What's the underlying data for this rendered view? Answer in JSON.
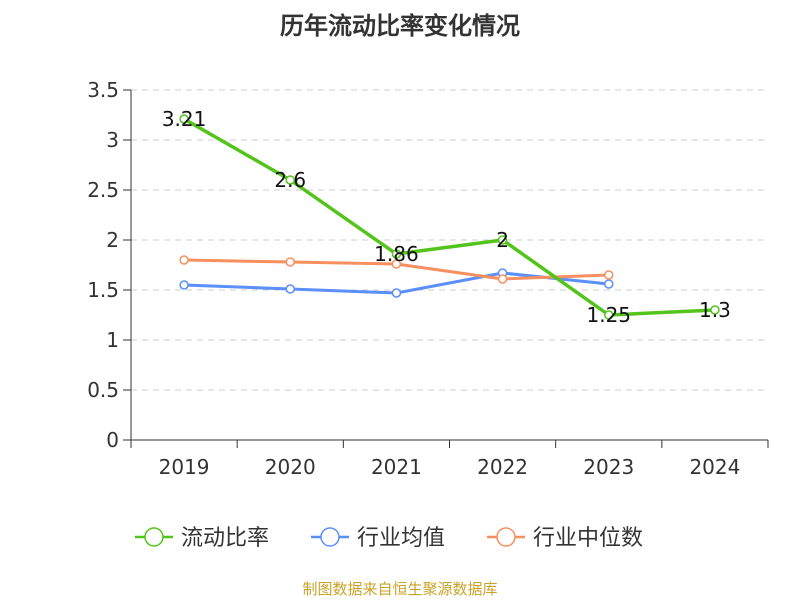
{
  "title": "历年流动比率变化情况",
  "source": "制图数据来自恒生聚源数据库",
  "chart_data": {
    "type": "line",
    "categories": [
      "2019",
      "2020",
      "2021",
      "2022",
      "2023",
      "2024"
    ],
    "ylim": [
      0,
      3.5
    ],
    "yticks": [
      "0",
      "0.5",
      "1",
      "1.5",
      "2",
      "2.5",
      "3",
      "3.5"
    ],
    "grid": true,
    "legend_position": "bottom",
    "series": [
      {
        "name": "流动比率",
        "color": "#52c41a",
        "values": [
          3.21,
          2.6,
          1.86,
          2,
          1.25,
          1.3
        ],
        "labels": [
          "3.21",
          "2.6",
          "1.86",
          "2",
          "1.25",
          "1.3"
        ]
      },
      {
        "name": "行业均值",
        "color": "#5b8ff9",
        "values": [
          1.55,
          1.51,
          1.47,
          1.67,
          1.56,
          null
        ]
      },
      {
        "name": "行业中位数",
        "color": "#f6905f",
        "values": [
          1.8,
          1.78,
          1.76,
          1.61,
          1.65,
          null
        ]
      }
    ]
  }
}
